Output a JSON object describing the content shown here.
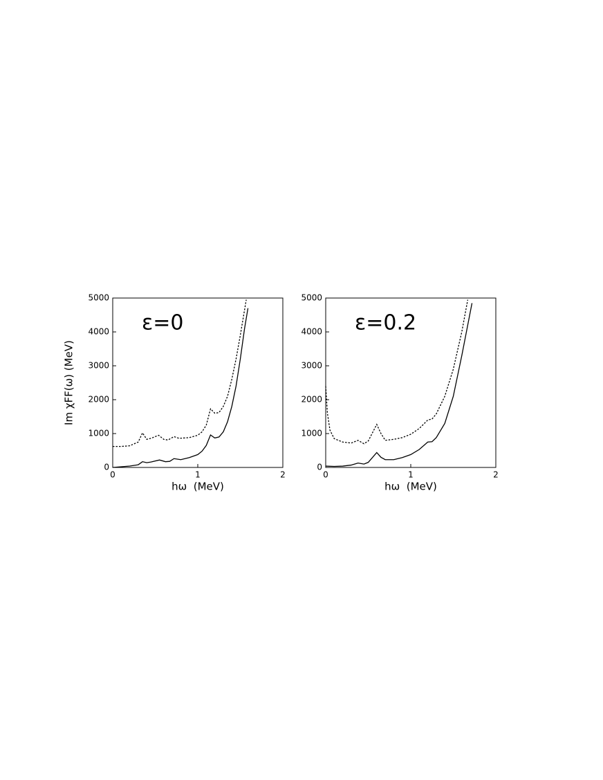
{
  "chart_data": [
    {
      "type": "line",
      "annotation": "ε=0",
      "y_label": "Im χFF(ω) (MeV)",
      "x_label": "hω  (MeV)",
      "xlim": [
        0,
        2
      ],
      "xticks": [
        0,
        1,
        2
      ],
      "ylim": [
        0,
        5000
      ],
      "yticks": [
        0,
        1000,
        2000,
        3000,
        4000,
        5000
      ],
      "series": [
        {
          "color": "#000000",
          "style": "solid",
          "x": [
            0,
            0.1,
            0.2,
            0.3,
            0.35,
            0.4,
            0.45,
            0.55,
            0.62,
            0.67,
            0.72,
            0.8,
            0.9,
            1.0,
            1.05,
            1.1,
            1.15,
            1.2,
            1.25,
            1.3,
            1.35,
            1.4,
            1.45,
            1.5,
            1.55,
            1.59
          ],
          "values": [
            0,
            20,
            40,
            80,
            170,
            140,
            160,
            220,
            170,
            180,
            260,
            230,
            290,
            380,
            480,
            650,
            960,
            870,
            900,
            1050,
            1350,
            1800,
            2400,
            3200,
            4100,
            4700
          ]
        },
        {
          "color": "#000000",
          "style": "dotted",
          "x": [
            0,
            0.1,
            0.2,
            0.3,
            0.35,
            0.4,
            0.45,
            0.54,
            0.6,
            0.65,
            0.72,
            0.78,
            0.9,
            1.0,
            1.05,
            1.1,
            1.15,
            1.2,
            1.25,
            1.3,
            1.35,
            1.4,
            1.45,
            1.5,
            1.57
          ],
          "values": [
            620,
            620,
            640,
            750,
            1020,
            830,
            860,
            950,
            830,
            810,
            910,
            860,
            880,
            950,
            1050,
            1250,
            1730,
            1600,
            1620,
            1800,
            2100,
            2600,
            3200,
            3900,
            4950
          ]
        }
      ]
    },
    {
      "type": "line",
      "annotation": "ε=0.2",
      "x_label": "hω  (MeV)",
      "xlim": [
        0,
        2
      ],
      "xticks": [
        0,
        1,
        2
      ],
      "ylim": [
        0,
        5000
      ],
      "yticks": [
        0,
        1000,
        2000,
        3000,
        4000,
        5000
      ],
      "series": [
        {
          "color": "#000000",
          "style": "solid",
          "x": [
            0,
            0.1,
            0.2,
            0.3,
            0.38,
            0.45,
            0.5,
            0.6,
            0.65,
            0.7,
            0.8,
            0.9,
            1.0,
            1.1,
            1.2,
            1.25,
            1.3,
            1.4,
            1.5,
            1.6,
            1.72
          ],
          "values": [
            40,
            30,
            40,
            70,
            130,
            100,
            150,
            440,
            300,
            230,
            230,
            290,
            380,
            530,
            750,
            760,
            880,
            1300,
            2100,
            3300,
            4850
          ]
        },
        {
          "color": "#000000",
          "style": "dotted",
          "x": [
            0,
            0.02,
            0.05,
            0.1,
            0.2,
            0.3,
            0.38,
            0.45,
            0.5,
            0.6,
            0.65,
            0.7,
            0.8,
            0.9,
            1.0,
            1.1,
            1.2,
            1.25,
            1.3,
            1.4,
            1.5,
            1.6,
            1.67
          ],
          "values": [
            2400,
            1600,
            1100,
            850,
            750,
            720,
            800,
            700,
            780,
            1270,
            1000,
            800,
            830,
            880,
            980,
            1150,
            1400,
            1430,
            1580,
            2100,
            2900,
            4000,
            4950
          ]
        }
      ]
    }
  ]
}
